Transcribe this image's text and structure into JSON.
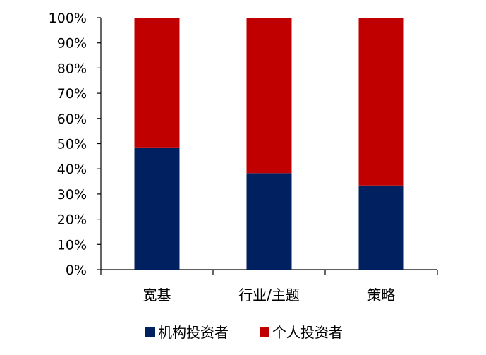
{
  "chart_data": {
    "type": "bar",
    "stacked": true,
    "title": "",
    "xlabel": "",
    "ylabel": "",
    "categories": [
      "宽基",
      "行业/主题",
      "策略"
    ],
    "series": [
      {
        "name": "机构投资者",
        "values": [
          48.5,
          38.3,
          33.4
        ],
        "color": "#002060"
      },
      {
        "name": "个人投资者",
        "values": [
          51.5,
          61.7,
          66.6
        ],
        "color": "#C00000"
      }
    ],
    "ylim": [
      0,
      100
    ],
    "yticks": [
      "0%",
      "10%",
      "20%",
      "30%",
      "40%",
      "50%",
      "60%",
      "70%",
      "80%",
      "90%",
      "100%"
    ],
    "grid": false,
    "legend": "bottom"
  }
}
